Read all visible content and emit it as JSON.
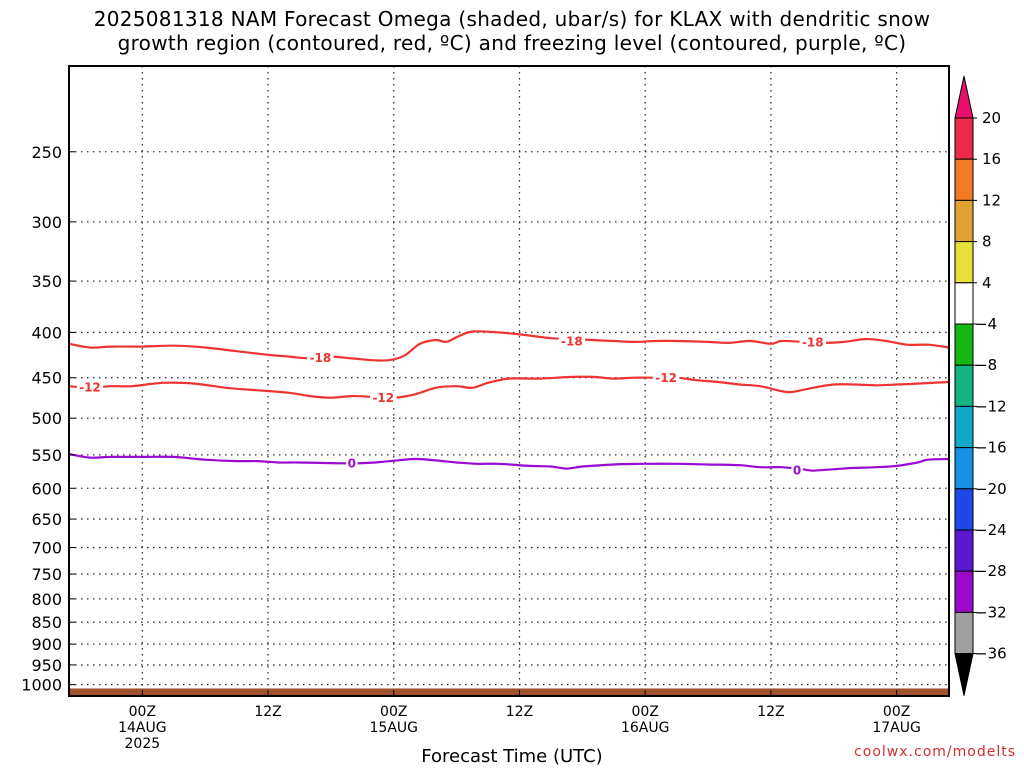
{
  "chart_data": {
    "type": "contour",
    "title": "2025081318 NAM Forecast Omega (shaded, ubar/s) for KLAX with dendritic snow",
    "subtitle": "growth region (contoured, red, ºC) and freezing level (contoured, purple, ºC)",
    "xlabel": "Forecast Time (UTC)",
    "ylabel": "",
    "y_scale": "log-pressure (inverted)",
    "ylim": [
      1030,
      200
    ],
    "y_ticks": [
      250,
      300,
      350,
      400,
      450,
      500,
      550,
      600,
      650,
      700,
      750,
      800,
      850,
      900,
      950,
      1000
    ],
    "x_start_hour": 18,
    "xlim_hours": [
      -1,
      83
    ],
    "x_ticks": [
      {
        "hour": 6,
        "lines": [
          "00Z",
          "14AUG",
          "2025"
        ]
      },
      {
        "hour": 18,
        "lines": [
          "12Z"
        ]
      },
      {
        "hour": 30,
        "lines": [
          "00Z",
          "15AUG"
        ]
      },
      {
        "hour": 42,
        "lines": [
          "12Z"
        ]
      },
      {
        "hour": 54,
        "lines": [
          "00Z",
          "16AUG"
        ]
      },
      {
        "hour": 66,
        "lines": [
          "12Z"
        ]
      },
      {
        "hour": 78,
        "lines": [
          "00Z",
          "17AUG"
        ]
      }
    ],
    "grid": true,
    "series": [
      {
        "temp_c": -18,
        "color": "#ee3333",
        "points": [
          [
            -1,
            412
          ],
          [
            1,
            416
          ],
          [
            3,
            415
          ],
          [
            6,
            415
          ],
          [
            9,
            414
          ],
          [
            12,
            416
          ],
          [
            15,
            420
          ],
          [
            18,
            424
          ],
          [
            20,
            426
          ],
          [
            22,
            428
          ],
          [
            24,
            426
          ],
          [
            26,
            428
          ],
          [
            28,
            430
          ],
          [
            29.5,
            430
          ],
          [
            31,
            425
          ],
          [
            32.5,
            412
          ],
          [
            34,
            408
          ],
          [
            35,
            410
          ],
          [
            36,
            405
          ],
          [
            37.5,
            399
          ],
          [
            40,
            400
          ],
          [
            42,
            402
          ],
          [
            45,
            406
          ],
          [
            47,
            407
          ],
          [
            49,
            408
          ],
          [
            51,
            409
          ],
          [
            53,
            410
          ],
          [
            55,
            409
          ],
          [
            57,
            409
          ],
          [
            60,
            410
          ],
          [
            62,
            411
          ],
          [
            64,
            409
          ],
          [
            66,
            412
          ],
          [
            67,
            409
          ],
          [
            69,
            410
          ],
          [
            71,
            411
          ],
          [
            73,
            410
          ],
          [
            75,
            407
          ],
          [
            77,
            409
          ],
          [
            79,
            413
          ],
          [
            81,
            413
          ],
          [
            83,
            416
          ]
        ],
        "labels": [
          [
            23,
            427
          ],
          [
            47,
            409
          ],
          [
            70,
            410
          ]
        ]
      },
      {
        "temp_c": -12,
        "color": "#ee3333",
        "points": [
          [
            -1,
            460
          ],
          [
            1,
            462
          ],
          [
            3,
            460
          ],
          [
            5,
            460
          ],
          [
            8,
            456
          ],
          [
            11,
            457
          ],
          [
            14,
            462
          ],
          [
            17,
            465
          ],
          [
            20,
            468
          ],
          [
            22,
            472
          ],
          [
            24,
            474
          ],
          [
            26,
            472
          ],
          [
            28,
            473
          ],
          [
            30,
            474
          ],
          [
            32,
            470
          ],
          [
            34,
            462
          ],
          [
            36,
            460
          ],
          [
            37.5,
            462
          ],
          [
            39,
            456
          ],
          [
            41,
            451
          ],
          [
            44,
            451
          ],
          [
            47,
            449
          ],
          [
            49,
            449
          ],
          [
            51,
            451
          ],
          [
            53,
            450
          ],
          [
            55,
            450
          ],
          [
            57,
            450
          ],
          [
            59,
            453
          ],
          [
            61,
            455
          ],
          [
            63,
            458
          ],
          [
            65,
            460
          ],
          [
            67,
            466
          ],
          [
            68,
            467
          ],
          [
            70,
            462
          ],
          [
            72,
            458
          ],
          [
            74,
            458
          ],
          [
            76,
            459
          ],
          [
            78,
            458
          ],
          [
            80,
            457
          ],
          [
            83,
            455
          ]
        ],
        "labels": [
          [
            1,
            461
          ],
          [
            29,
            474
          ],
          [
            56,
            450
          ]
        ]
      },
      {
        "temp_c": 0,
        "color": "#9a0ad0",
        "points": [
          [
            -1,
            549
          ],
          [
            1,
            554
          ],
          [
            3,
            553
          ],
          [
            6,
            553
          ],
          [
            9,
            553
          ],
          [
            12,
            557
          ],
          [
            15,
            559
          ],
          [
            17,
            559
          ],
          [
            19,
            561
          ],
          [
            21,
            561
          ],
          [
            24,
            562
          ],
          [
            27,
            562
          ],
          [
            29,
            560
          ],
          [
            32,
            556
          ],
          [
            34,
            558
          ],
          [
            36,
            561
          ],
          [
            38,
            563
          ],
          [
            40,
            563
          ],
          [
            43,
            566
          ],
          [
            45,
            567
          ],
          [
            46.5,
            570
          ],
          [
            48,
            567
          ],
          [
            51,
            564
          ],
          [
            54,
            563
          ],
          [
            57,
            563
          ],
          [
            60,
            564
          ],
          [
            63,
            565
          ],
          [
            65,
            568
          ],
          [
            67,
            568
          ],
          [
            69,
            571
          ],
          [
            70,
            573
          ],
          [
            72,
            571
          ],
          [
            74,
            569
          ],
          [
            76,
            568
          ],
          [
            78,
            566
          ],
          [
            80,
            561
          ],
          [
            81,
            557
          ],
          [
            83,
            556
          ]
        ],
        "labels": [
          [
            26,
            562
          ],
          [
            68.5,
            572
          ]
        ]
      }
    ],
    "terrain": {
      "color": "#a0522d",
      "top_pressure": 1010
    },
    "colorbar": {
      "units": "ubar/s",
      "ticks": [
        20,
        16,
        12,
        8,
        4,
        -4,
        -8,
        -12,
        -16,
        -20,
        -24,
        -28,
        -32,
        -36
      ],
      "colors": [
        "#ee2a4a",
        "#f57a28",
        "#e0a230",
        "#e6e038",
        "#ffffff",
        "#14b814",
        "#12b482",
        "#10aac8",
        "#1492e6",
        "#1f48e8",
        "#5a18d2",
        "#9a0ac8",
        "#a0a0a0"
      ],
      "above_color": "#e8106a",
      "below_color": "#000000"
    }
  },
  "watermark": "coolwx.com/modelts"
}
